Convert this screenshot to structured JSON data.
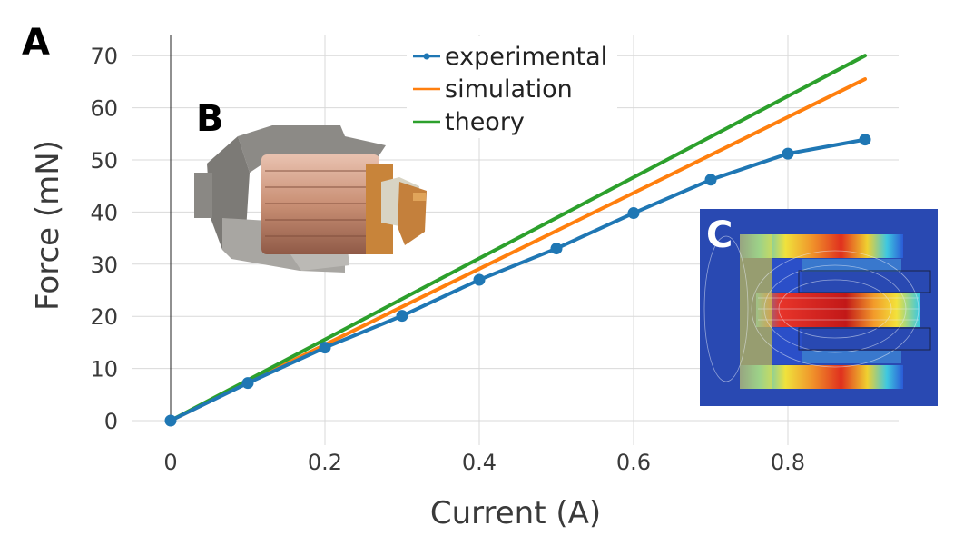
{
  "panels": {
    "a": "A",
    "b": "B",
    "c": "C"
  },
  "chart_data": {
    "type": "line",
    "xlabel": "Current (A)",
    "ylabel": "Force (mN)",
    "xlim": [
      -0.05,
      0.95
    ],
    "ylim": [
      -3,
      75
    ],
    "xticks": [
      0,
      0.2,
      0.4,
      0.6,
      0.8
    ],
    "xtick_labels": [
      "0",
      "0.2",
      "0.4",
      "0.6",
      "0.8"
    ],
    "yticks": [
      0,
      10,
      20,
      30,
      40,
      50,
      60,
      70
    ],
    "ytick_labels": [
      "0",
      "10",
      "20",
      "30",
      "40",
      "50",
      "60",
      "70"
    ],
    "grid": true,
    "legend_position": "top-center",
    "series": [
      {
        "name": "experimental",
        "color": "#1f77b4",
        "markers": true,
        "x": [
          0,
          0.1,
          0.2,
          0.3,
          0.4,
          0.5,
          0.6,
          0.7,
          0.8,
          0.9
        ],
        "y": [
          0,
          7.2,
          14,
          20.1,
          27,
          33,
          39.8,
          46.2,
          51.2,
          53.9
        ]
      },
      {
        "name": "simulation",
        "color": "#ff7f0e",
        "markers": false,
        "x": [
          0,
          0.9
        ],
        "y": [
          0,
          65.5
        ]
      },
      {
        "name": "theory",
        "color": "#2ca02c",
        "markers": false,
        "x": [
          0,
          0.9
        ],
        "y": [
          0,
          70
        ]
      }
    ]
  }
}
